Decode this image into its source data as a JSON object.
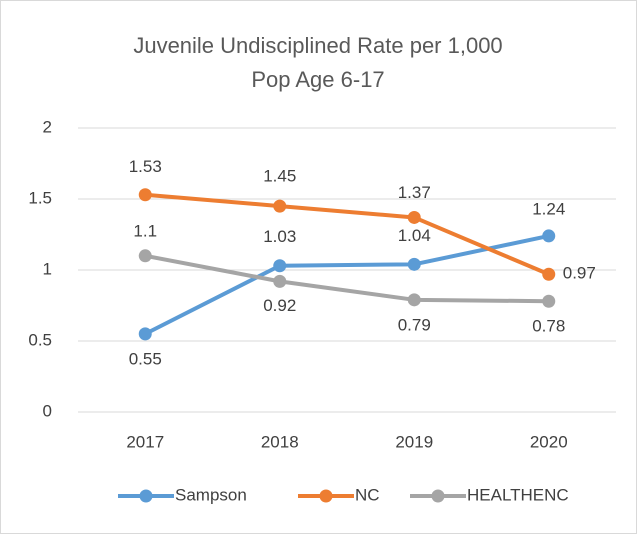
{
  "chart_data": {
    "type": "line",
    "title": [
      "Juvenile Undisciplined Rate per 1,000",
      "Pop Age 6-17"
    ],
    "categories": [
      "2017",
      "2018",
      "2019",
      "2020"
    ],
    "series": [
      {
        "name": "Sampson",
        "color": "#5b9bd5",
        "values": [
          0.55,
          1.03,
          1.04,
          1.24
        ]
      },
      {
        "name": "NC",
        "color": "#ed7d31",
        "values": [
          1.53,
          1.45,
          1.37,
          0.97
        ]
      },
      {
        "name": "HEALTHENC",
        "color": "#a5a5a5",
        "values": [
          1.1,
          0.92,
          0.79,
          0.78
        ]
      }
    ],
    "ylim": [
      0,
      2
    ],
    "yticks": [
      0,
      0.5,
      1,
      1.5,
      2
    ],
    "grid": true,
    "legend": "bottom"
  }
}
